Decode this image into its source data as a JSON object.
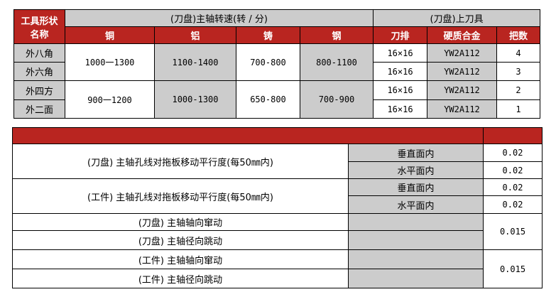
{
  "speed_table": {
    "header_shape": "工具形状\n名称",
    "header_shape_l1": "工具形状",
    "header_shape_l2": "名称",
    "header_speed": "(刀盘)主轴转速(转 / 分)",
    "header_tools": "(刀盘)上刀具",
    "materials": [
      "铜",
      "铝",
      "铸",
      "钢"
    ],
    "tool_cols": [
      "刀排",
      "硬质合金",
      "把数"
    ],
    "shapes": [
      "外八角",
      "外六角",
      "外四方",
      "外二面"
    ],
    "speed_groups": [
      [
        "1000一1300",
        "1100-1400",
        "700-800",
        "800-1100"
      ],
      [
        "900一1200",
        "1000-1300",
        "650-800",
        "700-900"
      ]
    ],
    "tool_rows": [
      [
        "16×16",
        "YW2A112",
        "4"
      ],
      [
        "16×16",
        "YW2A112",
        "3"
      ],
      [
        "16×16",
        "YW2A112",
        "2"
      ],
      [
        "16×16",
        "YW2A112",
        "1"
      ]
    ]
  },
  "precision_table": {
    "groups": [
      {
        "item": "(刀盘) 主轴孔线对拖板移动平行度(每50㎜内)",
        "subs": [
          "垂直面内",
          "水平面内"
        ],
        "values": [
          "0.02",
          "0.02"
        ]
      },
      {
        "item": "(工件) 主轴孔线对拖板移动平行度(每50㎜内)",
        "subs": [
          "垂直面内",
          "水平面内"
        ],
        "values": [
          "0.02",
          "0.02"
        ]
      }
    ],
    "runout_groups": [
      {
        "items": [
          "(刀盘) 主轴轴向窜动",
          "(刀盘) 主轴径向跳动"
        ],
        "value": "0.015"
      },
      {
        "items": [
          "(工件) 主轴轴向窜动",
          "(工件) 主轴径向跳动"
        ],
        "value": "0.015"
      }
    ]
  },
  "colors": {
    "header_red": "#b92520",
    "gray": "#cccccc"
  }
}
